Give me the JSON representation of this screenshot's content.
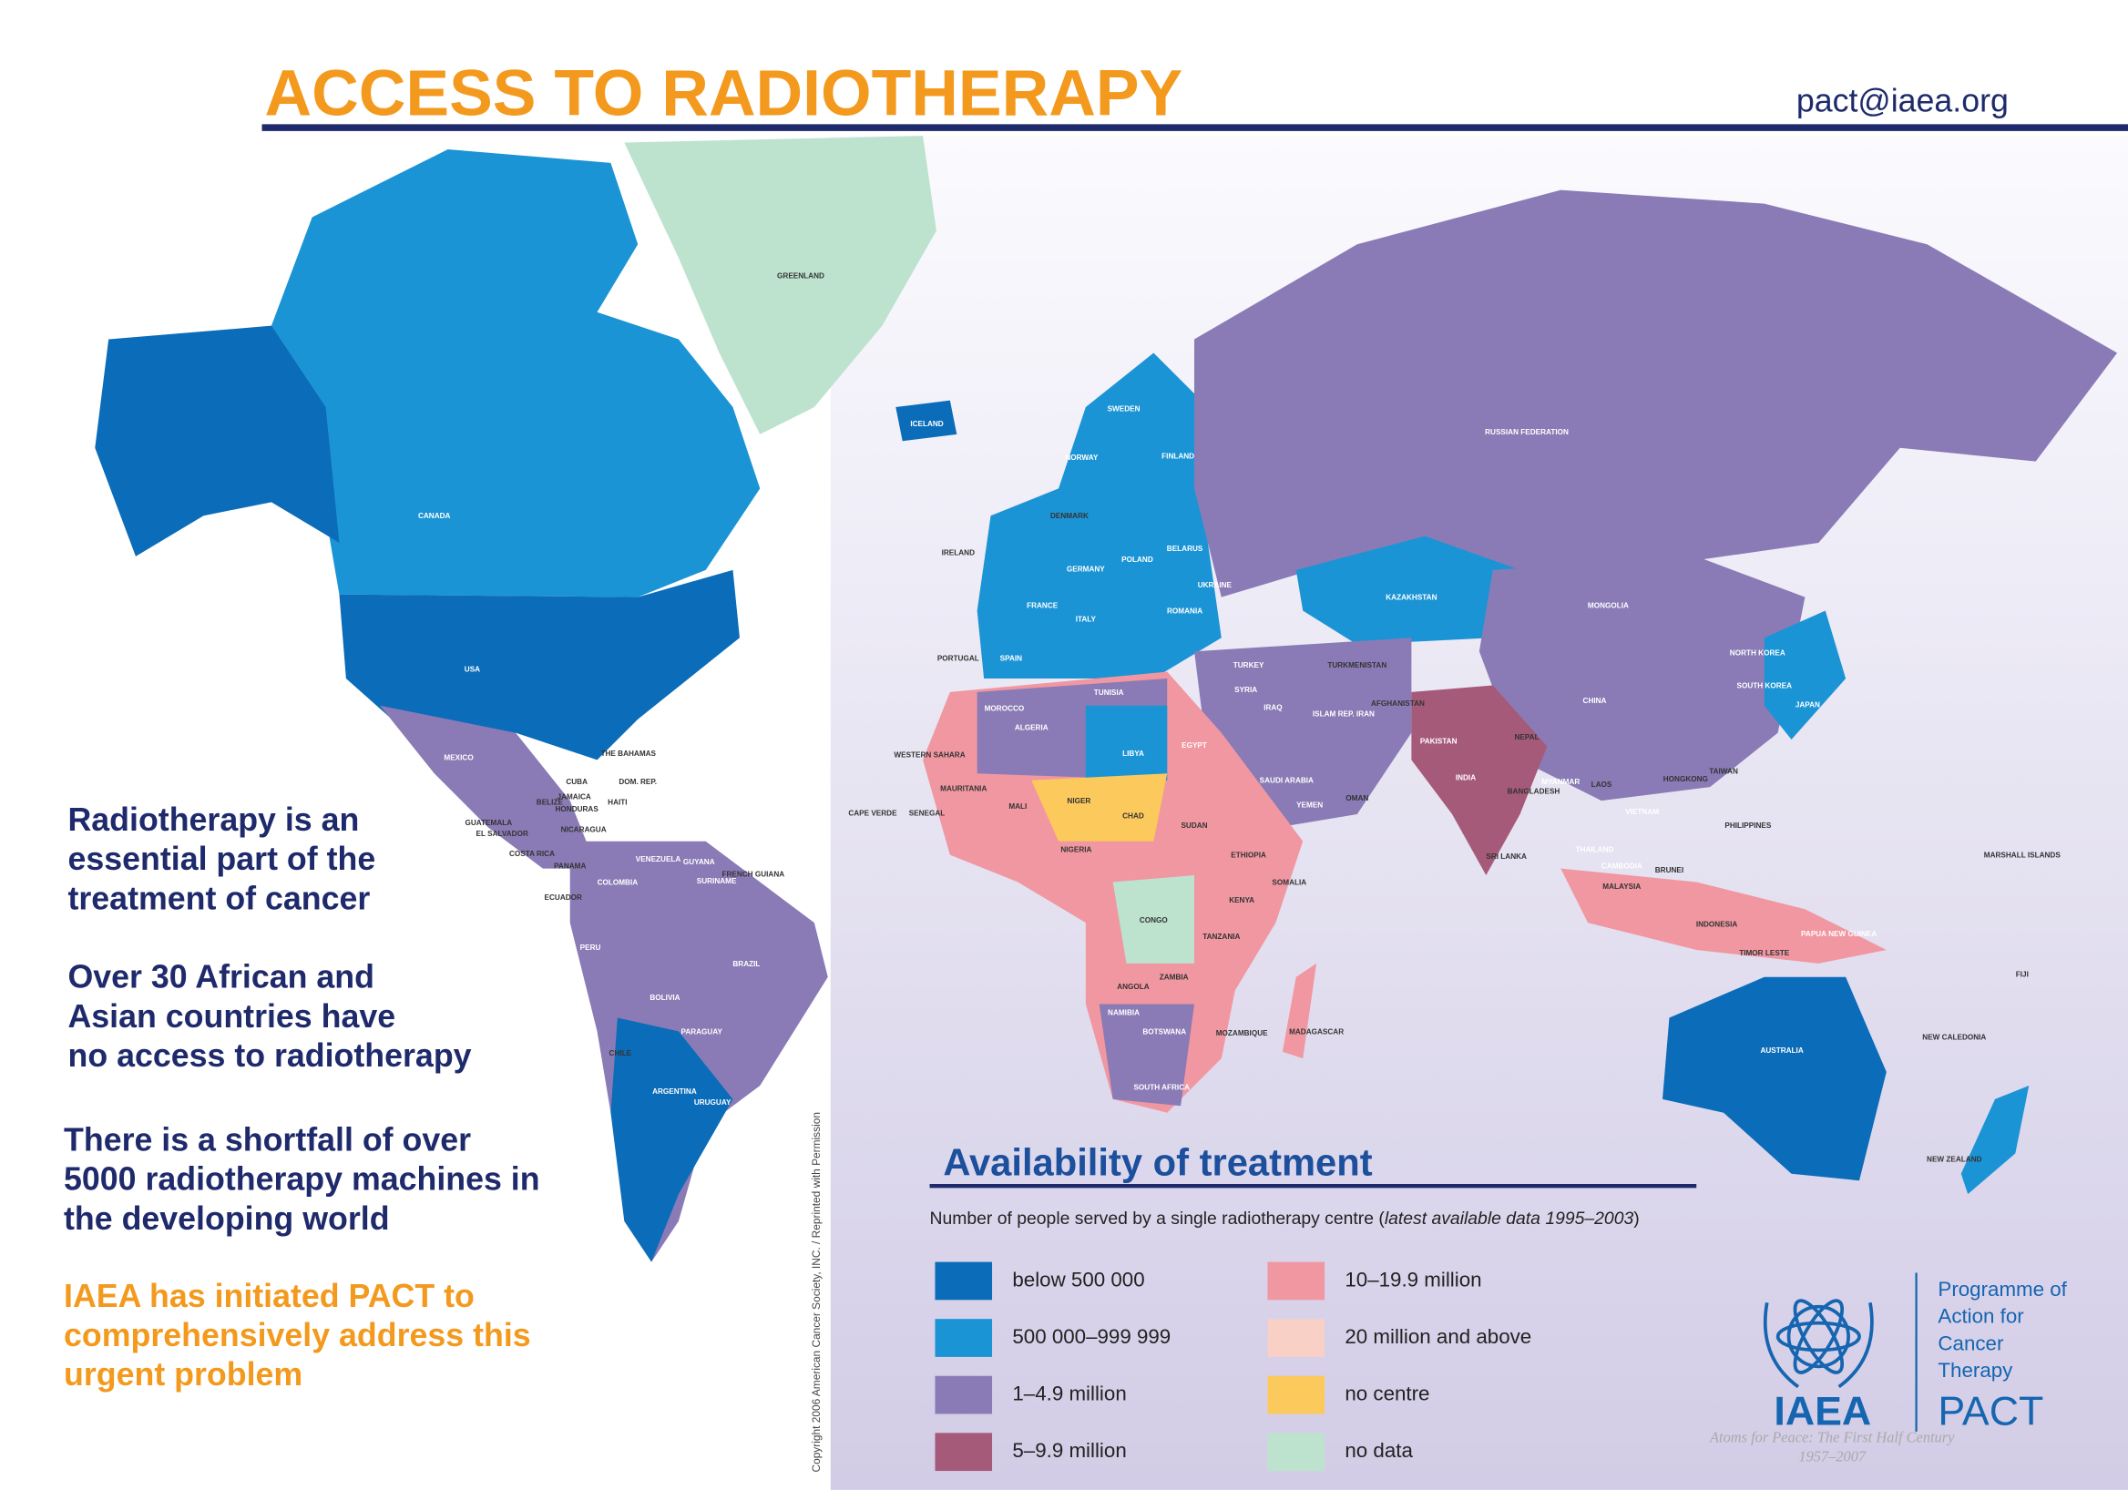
{
  "header": {
    "title": "ACCESS TO RADIOTHERAPY",
    "email": "pact@iaea.org"
  },
  "messages": [
    {
      "lines": [
        "Radiotherapy is an",
        "essential part of the",
        "treatment of cancer"
      ]
    },
    {
      "lines": [
        "Over 30 African and",
        "Asian countries have",
        "no access to radiotherapy"
      ]
    },
    {
      "lines": [
        "There is a shortfall of over",
        "5000 radiotherapy machines in",
        "the developing world"
      ]
    },
    {
      "lines": [
        "IAEA has initiated PACT to",
        "comprehensively address this",
        "urgent problem"
      ]
    }
  ],
  "legend": {
    "title": "Availability of treatment",
    "subtitle": "Number of people served by a single radiotherapy centre (",
    "subtitle_note": "latest available data 1995–2003",
    "subtitle_end": ")",
    "items": [
      {
        "label": "below 500 000",
        "color": "#0b6cb9"
      },
      {
        "label": "500 000–999 999",
        "color": "#1b94d5"
      },
      {
        "label": "1–4.9 million",
        "color": "#8a7bb6"
      },
      {
        "label": "5–9.9 million",
        "color": "#a65a79"
      },
      {
        "label": "10–19.9 million",
        "color": "#f097a1"
      },
      {
        "label": "20 million and above",
        "color": "#f8d0c5"
      },
      {
        "label": "no centre",
        "color": "#fcc95c"
      },
      {
        "label": "no data",
        "color": "#bde3cf"
      }
    ]
  },
  "logo": {
    "acronym": "IAEA",
    "program_lines": [
      "Programme of",
      "Action for",
      "Cancer",
      "Therapy"
    ],
    "program_acronym": "PACT",
    "motto": "Atoms for Peace: The First Half Century",
    "years": "1957–2007"
  },
  "copyright": "Copyright 2006 American Cancer Society, INC. / Reprinted with Permission",
  "map": {
    "labels": [
      "GREENLAND",
      "CANADA",
      "USA",
      "MEXICO",
      "THE BAHAMAS",
      "CUBA",
      "DOM. REP.",
      "HAITI",
      "JAMAICA",
      "BELIZE",
      "HONDURAS",
      "GUATEMALA",
      "EL SALVADOR",
      "NICARAGUA",
      "COSTA RICA",
      "PANAMA",
      "VENEZUELA",
      "GUYANA",
      "SURINAME",
      "FRENCH GUIANA",
      "COLOMBIA",
      "ECUADOR",
      "PERU",
      "BRAZIL",
      "BOLIVIA",
      "PARAGUAY",
      "CHILE",
      "ARGENTINA",
      "URUGUAY",
      "ICELAND",
      "IRELAND",
      "PORTUGAL",
      "SPAIN",
      "FRANCE",
      "NORWAY",
      "SWEDEN",
      "FINLAND",
      "DENMARK",
      "POLAND",
      "GERMANY",
      "ITALY",
      "UKRAINE",
      "BELARUS",
      "ROMANIA",
      "TURKEY",
      "RUSSIAN FEDERATION",
      "KAZAKHSTAN",
      "MONGOLIA",
      "CHINA",
      "NORTH KOREA",
      "SOUTH KOREA",
      "JAPAN",
      "TURKMENISTAN",
      "AFGHANISTAN",
      "ISLAM REP. IRAN",
      "PAKISTAN",
      "INDIA",
      "NEPAL",
      "BANGLADESH",
      "MYANMAR",
      "SRI LANKA",
      "LAOS",
      "VIETNAM",
      "THAILAND",
      "CAMBODIA",
      "PHILIPPINES",
      "HONGKONG",
      "TAIWAN",
      "INDONESIA",
      "PAPUA NEW GUINEA",
      "MALAYSIA",
      "BRUNEI",
      "TIMOR LESTE",
      "AUSTRALIA",
      "NEW ZEALAND",
      "NEW CALEDONIA",
      "FIJI",
      "MARSHALL ISLANDS",
      "MOROCCO",
      "ALGERIA",
      "LIBYA",
      "EGYPT",
      "WESTERN SAHARA",
      "MAURITANIA",
      "MALI",
      "NIGER",
      "CHAD",
      "SUDAN",
      "ETHIOPIA",
      "SOMALIA",
      "KENYA",
      "CONGO",
      "TANZANIA",
      "ANGOLA",
      "ZAMBIA",
      "NAMIBIA",
      "BOTSWANA",
      "SOUTH AFRICA",
      "MOZAMBIQUE",
      "MADAGASCAR",
      "NIGERIA",
      "SAUDI ARABIA",
      "YEMEN",
      "OMAN",
      "IRAQ",
      "SYRIA",
      "CAPE VERDE",
      "SENEGAL",
      "TUNISIA"
    ]
  }
}
